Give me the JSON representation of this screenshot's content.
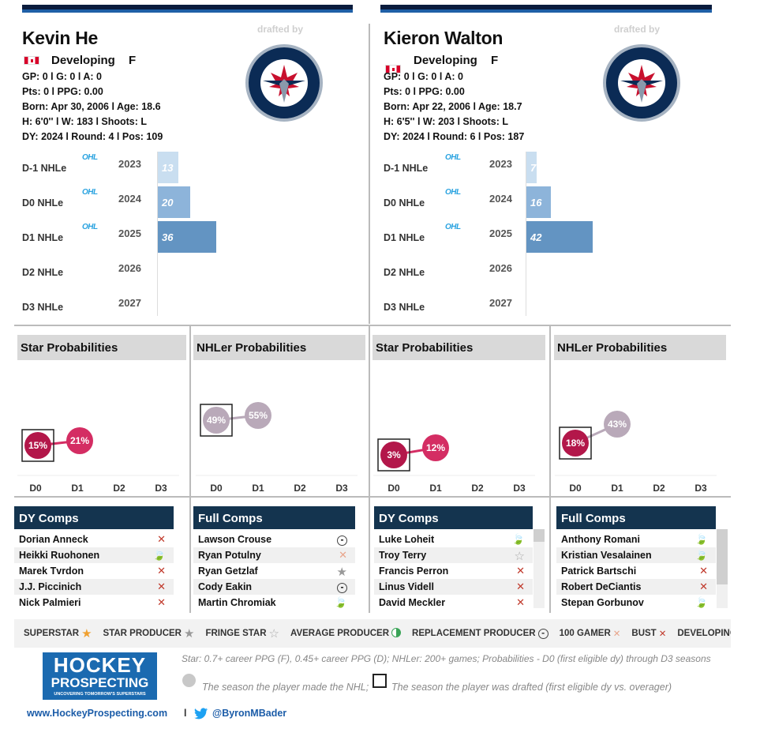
{
  "players": [
    {
      "name": "Kevin He",
      "flag": "canada-flag",
      "status": "Developing",
      "position": "F",
      "stats": [
        "GP: 0 l G: 0 l A: 0",
        "Pts: 0 l PPG: 0.00",
        "Born: Apr 30, 2006 l Age: 18.6",
        "H: 6'0'' l W: 183 l Shoots: L",
        "DY: 2024 l Round: 4 l Pos: 109"
      ],
      "drafted_by": "drafted by",
      "team_logo": "winnipeg-jets-logo",
      "nhle": [
        {
          "label": "D-1 NHLe",
          "league": "OHL",
          "year": "2023",
          "value": 13
        },
        {
          "label": "D0 NHLe",
          "league": "OHL",
          "year": "2024",
          "value": 20
        },
        {
          "label": "D1 NHLe",
          "league": "OHL",
          "year": "2025",
          "value": 36
        },
        {
          "label": "D2 NHLe",
          "league": "",
          "year": "2026",
          "value": null
        },
        {
          "label": "D3 NHLe",
          "league": "",
          "year": "2027",
          "value": null
        }
      ],
      "star_title": "Star Probabilities",
      "star_probs": [
        "15%",
        "21%"
      ],
      "nhler_title": "NHLer Probabilities",
      "nhler_probs": [
        "49%",
        "55%"
      ],
      "dy_title": "DY Comps",
      "dy_comps": [
        {
          "name": "Dorian Anneck",
          "icon": "bust-icon"
        },
        {
          "name": "Heikki Ruohonen",
          "icon": "developing-icon"
        },
        {
          "name": "Marek Tvrdon",
          "icon": "bust-icon"
        },
        {
          "name": "J.J. Piccinich",
          "icon": "bust-icon"
        },
        {
          "name": "Nick Palmieri",
          "icon": "bust-icon"
        }
      ],
      "full_title": "Full Comps",
      "full_comps": [
        {
          "name": "Lawson Crouse",
          "icon": "replacement-producer-icon"
        },
        {
          "name": "Ryan Potulny",
          "icon": "100-gamer-icon"
        },
        {
          "name": "Ryan Getzlaf",
          "icon": "star-producer-icon"
        },
        {
          "name": "Cody Eakin",
          "icon": "replacement-producer-icon"
        },
        {
          "name": "Martin Chromiak",
          "icon": "developing-icon"
        }
      ]
    },
    {
      "name": "Kieron Walton",
      "flag": "canada-flag",
      "status": "Developing",
      "position": "F",
      "stats": [
        "GP: 0 l G: 0 l A: 0",
        "Pts: 0 l PPG: 0.00",
        "Born: Apr 22, 2006 l Age: 18.7",
        "H: 6'5'' l W: 203 l Shoots: L",
        "DY: 2024 l Round: 6 l Pos: 187"
      ],
      "drafted_by": "drafted by",
      "team_logo": "winnipeg-jets-logo",
      "nhle": [
        {
          "label": "D-1 NHLe",
          "league": "OHL",
          "year": "2023",
          "value": 7
        },
        {
          "label": "D0 NHLe",
          "league": "OHL",
          "year": "2024",
          "value": 16
        },
        {
          "label": "D1 NHLe",
          "league": "OHL",
          "year": "2025",
          "value": 42
        },
        {
          "label": "D2 NHLe",
          "league": "",
          "year": "2026",
          "value": null
        },
        {
          "label": "D3 NHLe",
          "league": "",
          "year": "2027",
          "value": null
        }
      ],
      "star_title": "Star Probabilities",
      "star_probs": [
        "3%",
        "12%"
      ],
      "nhler_title": "NHLer Probabilities",
      "nhler_probs": [
        "18%",
        "43%"
      ],
      "dy_title": "DY Comps",
      "dy_comps": [
        {
          "name": "Luke Loheit",
          "icon": "developing-icon"
        },
        {
          "name": "Troy Terry",
          "icon": "fringe-star-icon"
        },
        {
          "name": "Francis Perron",
          "icon": "bust-icon"
        },
        {
          "name": "Linus Videll",
          "icon": "bust-icon"
        },
        {
          "name": "David Meckler",
          "icon": "bust-icon"
        }
      ],
      "full_title": "Full Comps",
      "full_comps": [
        {
          "name": "Anthony Romani",
          "icon": "developing-icon"
        },
        {
          "name": "Kristian Vesalainen",
          "icon": "developing-icon"
        },
        {
          "name": "Patrick Bartschi",
          "icon": "bust-icon"
        },
        {
          "name": "Robert DeCiantis",
          "icon": "bust-icon"
        },
        {
          "name": "Stepan Gorbunov",
          "icon": "developing-icon"
        }
      ]
    }
  ],
  "season_labels": [
    "D0",
    "D1",
    "D2",
    "D3"
  ],
  "legend": [
    {
      "label": "SUPERSTAR",
      "icon": "superstar-icon"
    },
    {
      "label": "STAR PRODUCER",
      "icon": "star-producer-icon"
    },
    {
      "label": "FRINGE STAR",
      "icon": "fringe-star-icon"
    },
    {
      "label": "AVERAGE PRODUCER",
      "icon": "average-producer-icon"
    },
    {
      "label": "REPLACEMENT PRODUCER",
      "icon": "replacement-producer-icon"
    },
    {
      "label": "100 GAMER",
      "icon": "100-gamer-icon"
    },
    {
      "label": "BUST",
      "icon": "bust-icon"
    },
    {
      "label": "DEVELOPING",
      "icon": "developing-icon"
    }
  ],
  "footer": {
    "logo_line1": "HOCKEY",
    "logo_line2": "PROSPECTING",
    "logo_tagline": "UNCOVERING TOMORROW'S SUPERSTARS",
    "note1": "Star: 0.7+ career PPG (F), 0.45+ career PPG (D); NHLer: 200+ games; Probabilities - D0 (first eligible dy) through D3 seasons",
    "note2": "The season the player made the NHL;",
    "note3": "The season the player was drafted (first eligible dy vs. overager)",
    "website": "www.HockeyProspecting.com",
    "separator": "l",
    "twitter": "@ByronMBader"
  },
  "colors": {
    "navy": "#14344f",
    "bar_light": "#c9def0",
    "bar_mid": "#8db4da",
    "bar_dark": "#6394c2",
    "star_dot": "#b3174a",
    "star_dot2": "#d42d63",
    "nhler_dot": "#b3174a",
    "nhler_dot2": "#b9a9b9"
  }
}
